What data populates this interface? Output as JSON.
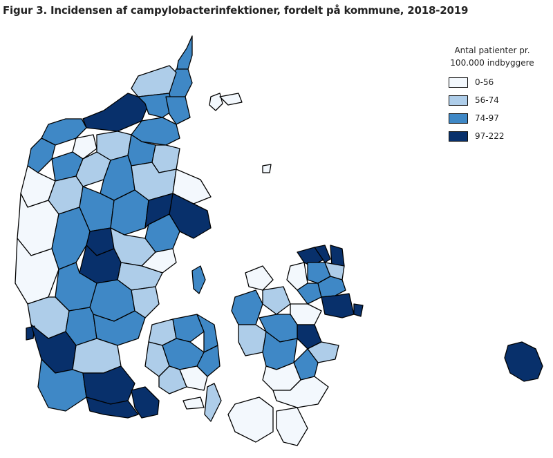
{
  "title": "Figur 3. Incidensen af campylobacterinfektioner, fordelt på kommune, 2018-2019",
  "legend": {
    "title_line1": "Antal patienter pr.",
    "title_line2": "100.000 indbyggere",
    "items": [
      {
        "label": "0-56",
        "color": "#f3f8fd"
      },
      {
        "label": "56-74",
        "color": "#aecde9"
      },
      {
        "label": "74-97",
        "color": "#3f88c6"
      },
      {
        "label": "97-222",
        "color": "#08306b"
      }
    ]
  },
  "colors": {
    "border": "#000000",
    "class1": "#f3f8fd",
    "class2": "#aecde9",
    "class3": "#3f88c6",
    "class4": "#08306b"
  }
}
